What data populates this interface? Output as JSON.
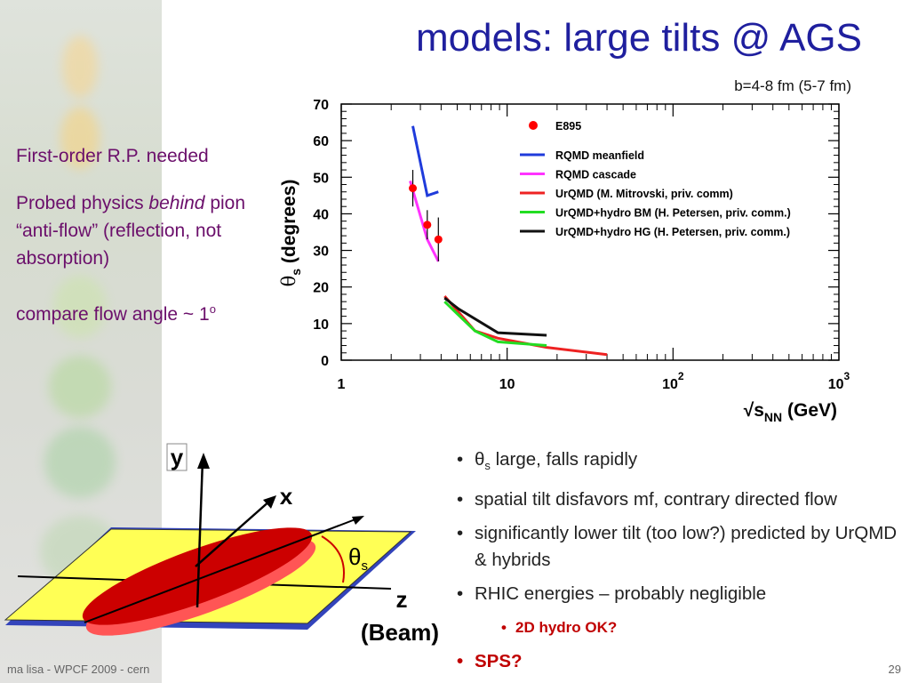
{
  "slide": {
    "title": "models: large tilts @ AGS",
    "impact_note": "b=4-8 fm (5-7 fm)",
    "left_text": {
      "line1": "First-order R.P. needed",
      "line2_a": "Probed physics ",
      "line2_em": "behind",
      "line2_b": " pion “anti-flow” (reflection, not absorption)",
      "line3": "compare flow angle ~ 1",
      "line3_sup": "o"
    },
    "bullets": {
      "b1_sym": "θ",
      "b1_sub": "s",
      "b1_rest": " large, falls rapidly",
      "b2": "spatial tilt disfavors mf, contrary directed flow",
      "b3": "significantly lower tilt (too low?) predicted by UrQMD & hybrids",
      "b4": "RHIC energies – probably negligible",
      "b5": "2D hydro OK?",
      "b6": "SPS?"
    },
    "footer": "ma lisa - WPCF 2009 - cern",
    "page_number": "29"
  },
  "diagram": {
    "axis_y": "y",
    "axis_x": "x",
    "axis_z": "z",
    "beam_label": "(Beam)",
    "angle_symbol": "θ",
    "angle_sub": "s",
    "colors": {
      "plane": "#ffff55",
      "ellipsoid": "#cc0000",
      "plane_edge": "#3333aa"
    }
  },
  "chart_data": {
    "type": "line",
    "title": "",
    "xlabel": "√s",
    "xlabel_sub": "NN",
    "xlabel_unit": " (GeV)",
    "ylabel": "θ",
    "ylabel_sub": "s",
    "ylabel_unit": " (degrees)",
    "xscale": "log",
    "xlim": [
      1,
      1000
    ],
    "ylim": [
      0,
      70
    ],
    "xticks": [
      {
        "label": "1",
        "sup": ""
      },
      {
        "label": "10",
        "sup": ""
      },
      {
        "label": "10",
        "sup": "2"
      },
      {
        "label": "10",
        "sup": "3"
      }
    ],
    "yticks": [
      "0",
      "10",
      "20",
      "30",
      "40",
      "50",
      "60",
      "70"
    ],
    "legend_position": "top-right",
    "points": {
      "name": "E895",
      "color": "#ff0000",
      "data": [
        {
          "x": 2.7,
          "y": 47,
          "yerr": 5
        },
        {
          "x": 3.3,
          "y": 37,
          "yerr": 4
        },
        {
          "x": 3.85,
          "y": 33,
          "yerr": 6
        }
      ]
    },
    "series": [
      {
        "name": "RQMD meanfield",
        "color": "#1f3bdb",
        "points": [
          [
            2.7,
            64
          ],
          [
            3.3,
            45
          ],
          [
            3.85,
            46
          ]
        ]
      },
      {
        "name": "RQMD cascade",
        "color": "#ff33ff",
        "points": [
          [
            2.6,
            49
          ],
          [
            3.3,
            33
          ],
          [
            3.85,
            27
          ]
        ]
      },
      {
        "name": "UrQMD (M. Mitrovski, priv. comm)",
        "color": "#ee2222",
        "points": [
          [
            4.2,
            17.5
          ],
          [
            6.4,
            8
          ],
          [
            8.8,
            6
          ],
          [
            17.3,
            3.5
          ],
          [
            40,
            1.5
          ]
        ]
      },
      {
        "name": "UrQMD+hydro BM (H. Petersen, priv. comm.)",
        "color": "#22dd22",
        "points": [
          [
            4.2,
            16
          ],
          [
            6.4,
            8
          ],
          [
            8.8,
            5
          ],
          [
            17.3,
            4
          ]
        ]
      },
      {
        "name": "UrQMD+hydro HG (H. Petersen, priv. comm.)",
        "color": "#111111",
        "points": [
          [
            4.2,
            17
          ],
          [
            5.1,
            14
          ],
          [
            8.8,
            7.5
          ],
          [
            17.3,
            6.8
          ]
        ]
      }
    ]
  }
}
